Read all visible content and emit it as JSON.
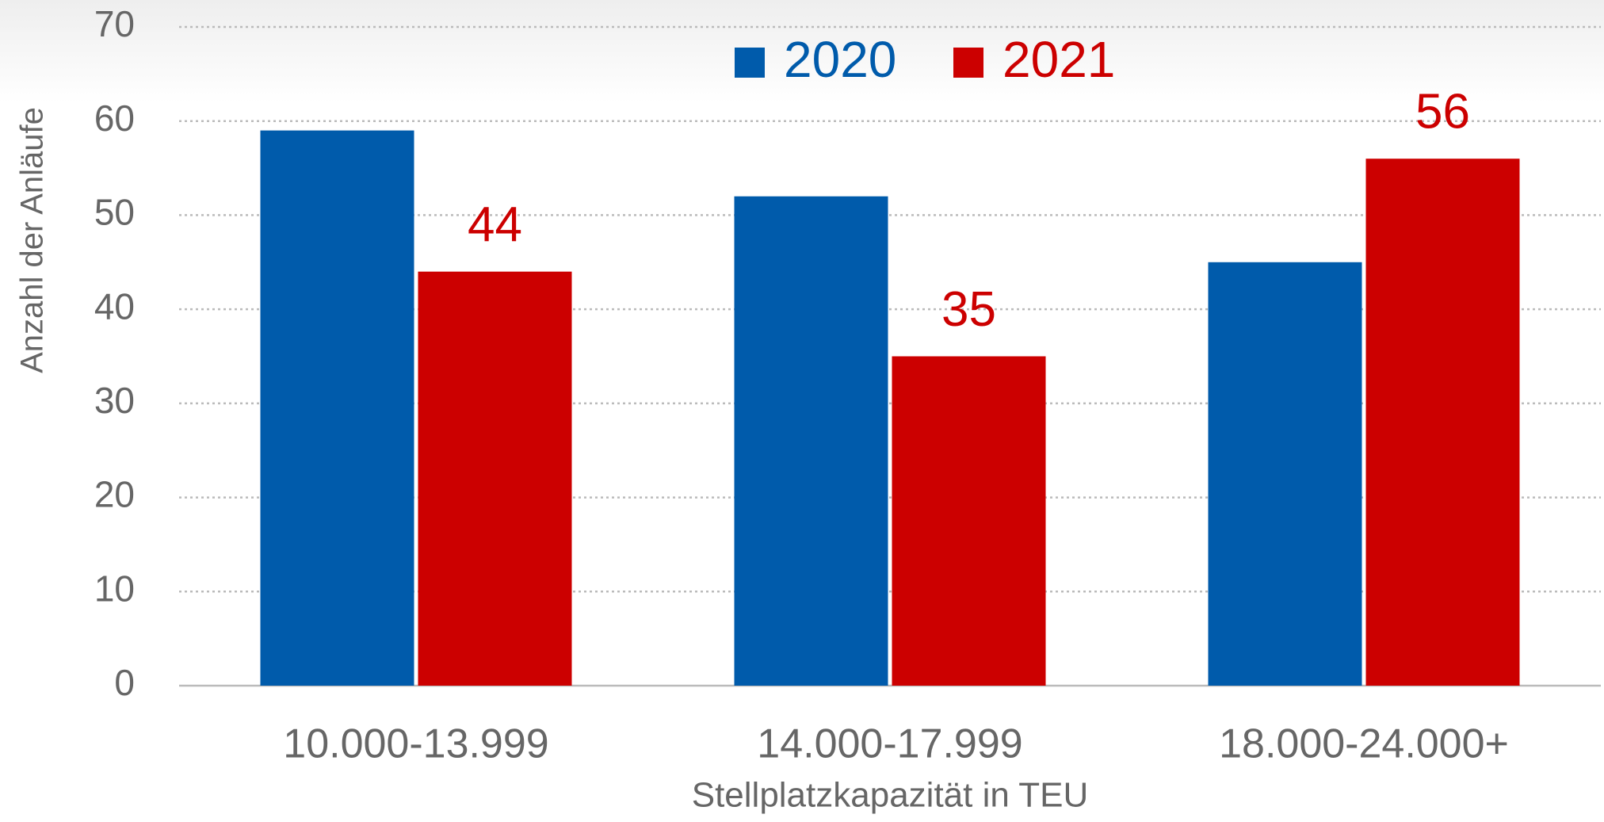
{
  "chart_data": {
    "type": "bar",
    "categories": [
      "10.000-13.999",
      "14.000-17.999",
      "18.000-24.000+"
    ],
    "series": [
      {
        "name": "2020",
        "color": "#005bab",
        "values": [
          59,
          52,
          45
        ]
      },
      {
        "name": "2021",
        "color": "#cc0000",
        "values": [
          44,
          35,
          56
        ],
        "show_values": true
      }
    ],
    "ylim": [
      0,
      70
    ],
    "yticks": [
      0,
      10,
      20,
      30,
      40,
      50,
      60,
      70
    ],
    "grid": true,
    "xlabel": "Stellplatzkapazität in TEU",
    "ylabel": "Anzahl der Anläufe",
    "legend": "top"
  }
}
